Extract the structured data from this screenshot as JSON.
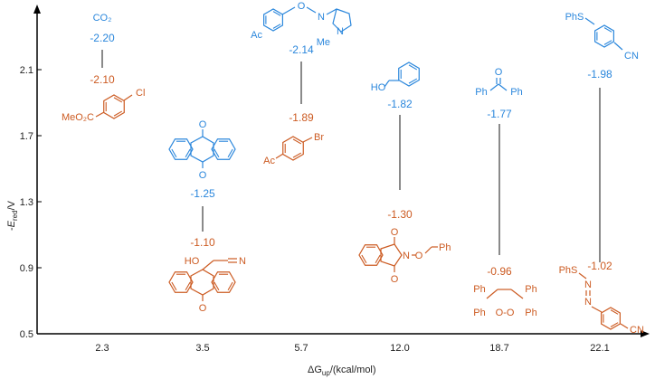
{
  "colors": {
    "substrate_top": "#2b87dc",
    "substrate_bottom": "#cc5b22",
    "connector": "#8a8a8a",
    "axis": "#000000"
  },
  "chart_data": {
    "type": "dumbbell",
    "xlabel": {
      "main": "ΔG",
      "sub": "up",
      "rest": "/(kcal/mol)"
    },
    "ylabel": {
      "prefix": "-",
      "main": "E",
      "sub": "red",
      "rest": "/V"
    },
    "categories": [
      "2.3",
      "3.5",
      "5.7",
      "12.0",
      "18.7",
      "22.1"
    ],
    "yticks": [
      "0.5",
      "0.9",
      "1.3",
      "1.7",
      "2.1"
    ],
    "ylim": [
      0.5,
      2.3
    ],
    "grid": false,
    "series": [
      {
        "color": "#2b87dc",
        "values": [
          -2.2,
          -1.25,
          -2.14,
          -1.82,
          -1.77,
          -1.98
        ],
        "labels": [
          "-2.20",
          "-1.25",
          "-2.14",
          "-1.82",
          "-1.77",
          "-1.98"
        ]
      },
      {
        "color": "#cc5b22",
        "values": [
          -2.1,
          -1.1,
          -1.89,
          -1.3,
          -0.96,
          -1.02
        ],
        "labels": [
          "-2.10",
          "-1.10",
          "-1.89",
          "-1.30",
          "-0.96",
          "-1.02"
        ]
      }
    ]
  },
  "molecules": [
    {
      "top": [
        "CO₂"
      ],
      "bottom": [
        "Cl",
        "MeO₂C"
      ]
    },
    {
      "top": [
        "O",
        "O"
      ],
      "bottom": [
        "HO",
        "N",
        "O"
      ]
    },
    {
      "top": [
        "Ac",
        "O",
        "N",
        "N",
        "Me"
      ],
      "bottom": [
        "Br",
        "Ac"
      ]
    },
    {
      "top": [
        "HO"
      ],
      "bottom": [
        "O",
        "O",
        "N",
        "O",
        "Ph"
      ]
    },
    {
      "top": [
        "O",
        "Ph",
        "Ph"
      ],
      "bottom": [
        "Ph",
        "Ph",
        "Ph",
        "Ph",
        "O-O"
      ]
    },
    {
      "top": [
        "PhS",
        "CN"
      ],
      "bottom": [
        "PhS",
        "N",
        "N",
        "CN"
      ]
    }
  ]
}
